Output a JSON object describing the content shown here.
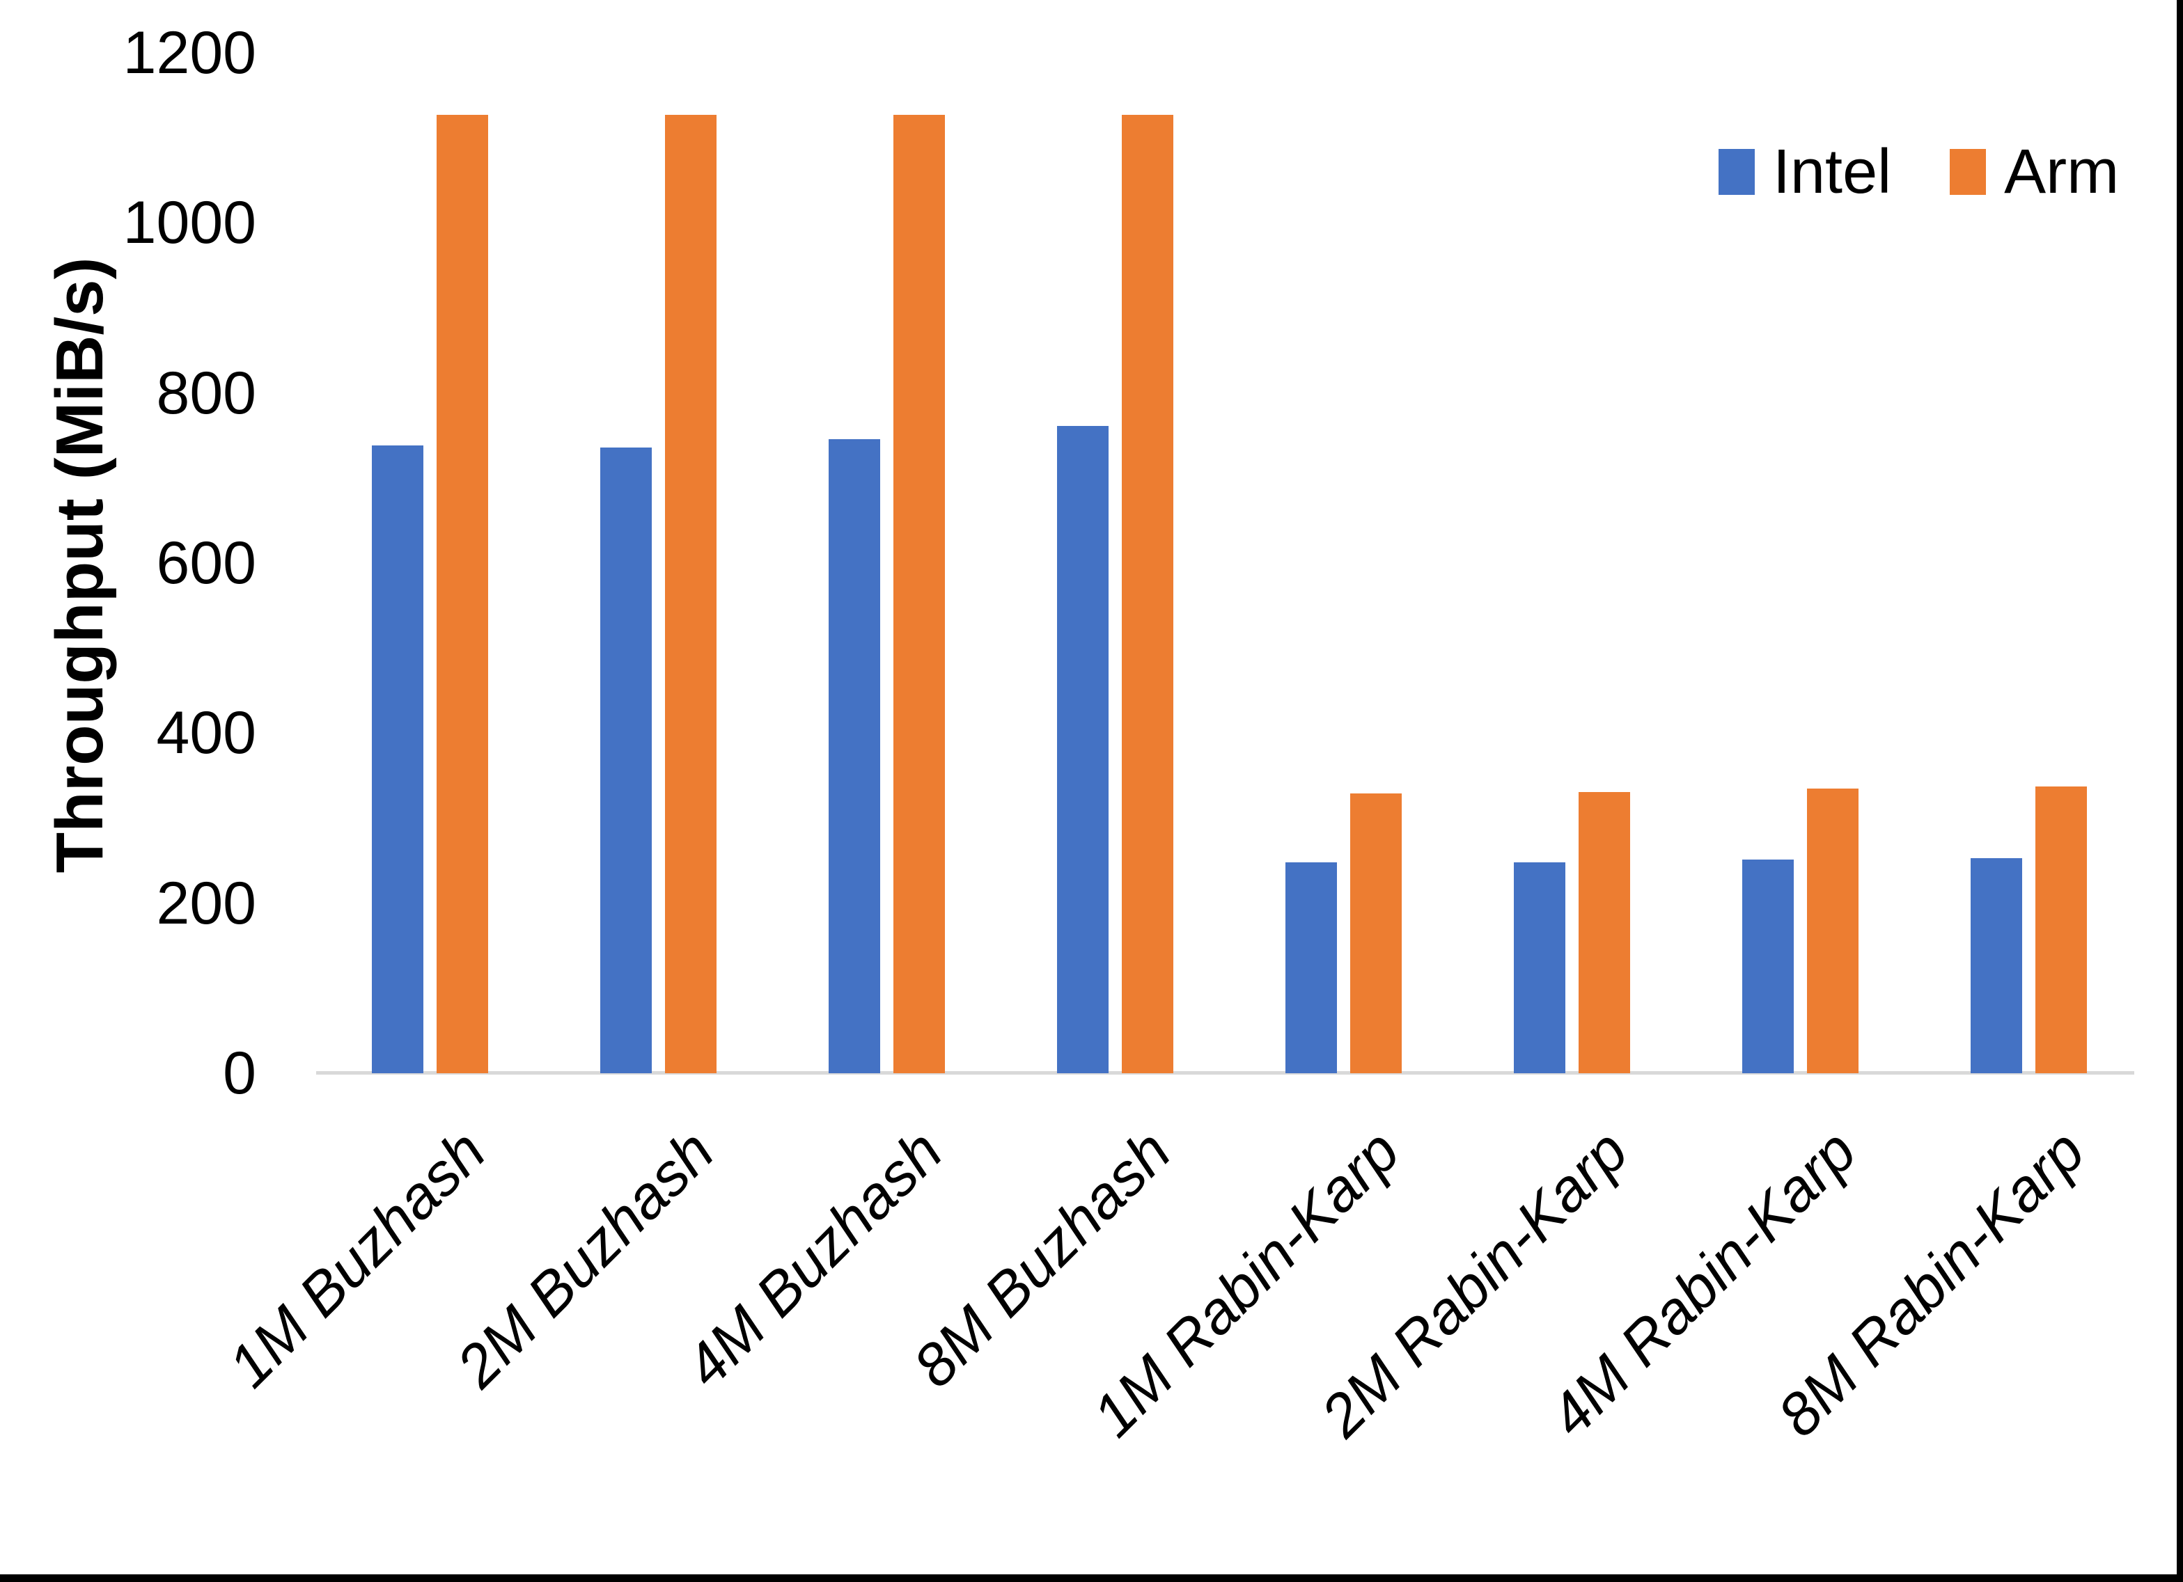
{
  "chart_data": {
    "type": "bar",
    "title": "",
    "xlabel": "",
    "ylabel": "Throughput (MiB/s)",
    "categories": [
      "1M Buzhash",
      "2M Buzhash",
      "4M Buzhash",
      "8M Buzhash",
      "1M Rabin-Karp",
      "2M Rabin-Karp",
      "4M Rabin-Karp",
      "8M Rabin-Karp"
    ],
    "series": [
      {
        "name": "Intel",
        "color": "#4472C4",
        "values": [
          738,
          736,
          746,
          761,
          248,
          248,
          251,
          253
        ]
      },
      {
        "name": "Arm",
        "color": "#ED7D31",
        "values": [
          1127,
          1127,
          1127,
          1127,
          329,
          331,
          335,
          337
        ]
      }
    ],
    "ylim": [
      0,
      1200
    ],
    "y_ticks": [
      0,
      200,
      400,
      600,
      800,
      1000,
      1200
    ],
    "grid": false,
    "legend_position": "top-right",
    "axis_line_color": "#D9D9D9",
    "text_color": "#000000",
    "frame_border_color": "#000000",
    "background_color": "#FFFFFF"
  }
}
